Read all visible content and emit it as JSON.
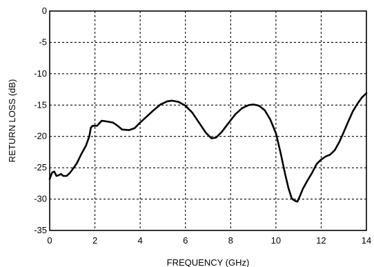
{
  "chart_data": {
    "type": "line",
    "xlabel": "FREQUENCY (GHz)",
    "ylabel": "RETURN LOSS (dB)",
    "xlim": [
      0,
      14
    ],
    "ylim": [
      -35,
      0
    ],
    "x_ticks": [
      0,
      2,
      4,
      6,
      8,
      10,
      12,
      14
    ],
    "y_ticks": [
      0,
      -5,
      -10,
      -15,
      -20,
      -25,
      -30,
      -35
    ],
    "x_tick_labels": [
      "0",
      "2",
      "4",
      "6",
      "8",
      "10",
      "12",
      "14"
    ],
    "y_tick_labels": [
      "0",
      "-5",
      "-10",
      "-15",
      "-20",
      "-25",
      "-30",
      "-35"
    ],
    "grid": "dashed",
    "series": [
      {
        "line_color": "#000000",
        "points": [
          [
            0.0,
            -26.8
          ],
          [
            0.1,
            -25.8
          ],
          [
            0.2,
            -25.6
          ],
          [
            0.3,
            -26.3
          ],
          [
            0.4,
            -26.2
          ],
          [
            0.5,
            -26.0
          ],
          [
            0.6,
            -26.3
          ],
          [
            0.75,
            -26.3
          ],
          [
            0.9,
            -25.8
          ],
          [
            1.0,
            -25.3
          ],
          [
            1.2,
            -24.3
          ],
          [
            1.4,
            -22.8
          ],
          [
            1.6,
            -21.5
          ],
          [
            1.75,
            -20.0
          ],
          [
            1.82,
            -18.6
          ],
          [
            1.9,
            -18.3
          ],
          [
            2.1,
            -18.3
          ],
          [
            2.3,
            -17.5
          ],
          [
            2.5,
            -17.6
          ],
          [
            2.8,
            -17.8
          ],
          [
            3.0,
            -18.3
          ],
          [
            3.2,
            -18.9
          ],
          [
            3.5,
            -19.0
          ],
          [
            3.75,
            -18.7
          ],
          [
            4.0,
            -17.8
          ],
          [
            4.3,
            -16.8
          ],
          [
            4.6,
            -15.8
          ],
          [
            4.9,
            -14.9
          ],
          [
            5.2,
            -14.4
          ],
          [
            5.4,
            -14.3
          ],
          [
            5.7,
            -14.5
          ],
          [
            6.0,
            -15.1
          ],
          [
            6.3,
            -16.2
          ],
          [
            6.6,
            -17.8
          ],
          [
            6.9,
            -19.4
          ],
          [
            7.15,
            -20.3
          ],
          [
            7.35,
            -20.2
          ],
          [
            7.6,
            -19.3
          ],
          [
            7.9,
            -17.9
          ],
          [
            8.2,
            -16.5
          ],
          [
            8.5,
            -15.5
          ],
          [
            8.8,
            -15.0
          ],
          [
            9.0,
            -14.9
          ],
          [
            9.25,
            -15.1
          ],
          [
            9.5,
            -15.8
          ],
          [
            9.75,
            -17.3
          ],
          [
            10.0,
            -19.5
          ],
          [
            10.2,
            -22.5
          ],
          [
            10.4,
            -25.9
          ],
          [
            10.55,
            -28.2
          ],
          [
            10.7,
            -29.9
          ],
          [
            10.85,
            -30.3
          ],
          [
            10.95,
            -30.4
          ],
          [
            11.05,
            -29.6
          ],
          [
            11.2,
            -28.3
          ],
          [
            11.4,
            -27.0
          ],
          [
            11.6,
            -25.8
          ],
          [
            11.8,
            -24.4
          ],
          [
            12.0,
            -23.7
          ],
          [
            12.2,
            -23.2
          ],
          [
            12.4,
            -22.9
          ],
          [
            12.6,
            -22.2
          ],
          [
            12.8,
            -20.9
          ],
          [
            13.0,
            -19.3
          ],
          [
            13.2,
            -17.6
          ],
          [
            13.4,
            -16.0
          ],
          [
            13.6,
            -14.8
          ],
          [
            13.8,
            -13.8
          ],
          [
            14.0,
            -13.1
          ]
        ]
      }
    ]
  }
}
